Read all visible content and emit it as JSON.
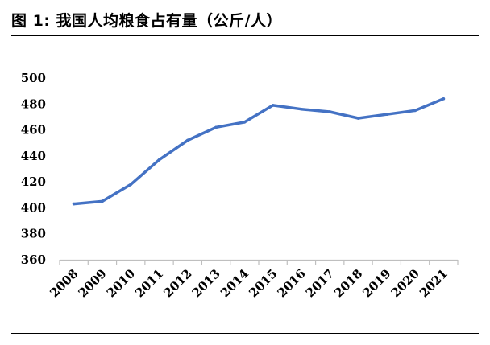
{
  "title": "图 1:  我国人均粮食占有量（公斤/人）",
  "chart_data": {
    "type": "line",
    "title": "我国人均粮食占有量（公斤/人）",
    "xlabel": "",
    "ylabel": "",
    "categories": [
      "2008",
      "2009",
      "2010",
      "2011",
      "2012",
      "2013",
      "2014",
      "2015",
      "2016",
      "2017",
      "2018",
      "2019",
      "2020",
      "2021"
    ],
    "series": [
      {
        "values": [
          403,
          405,
          418,
          437,
          452,
          462,
          466,
          479,
          476,
          474,
          469,
          472,
          475,
          484
        ]
      }
    ],
    "ylim": [
      360,
      500
    ],
    "yticks": [
      360,
      380,
      400,
      420,
      440,
      460,
      480,
      500
    ],
    "grid": false,
    "legend": "none",
    "line_color": "#4472C4",
    "axis_color": "#bfbfbf"
  }
}
